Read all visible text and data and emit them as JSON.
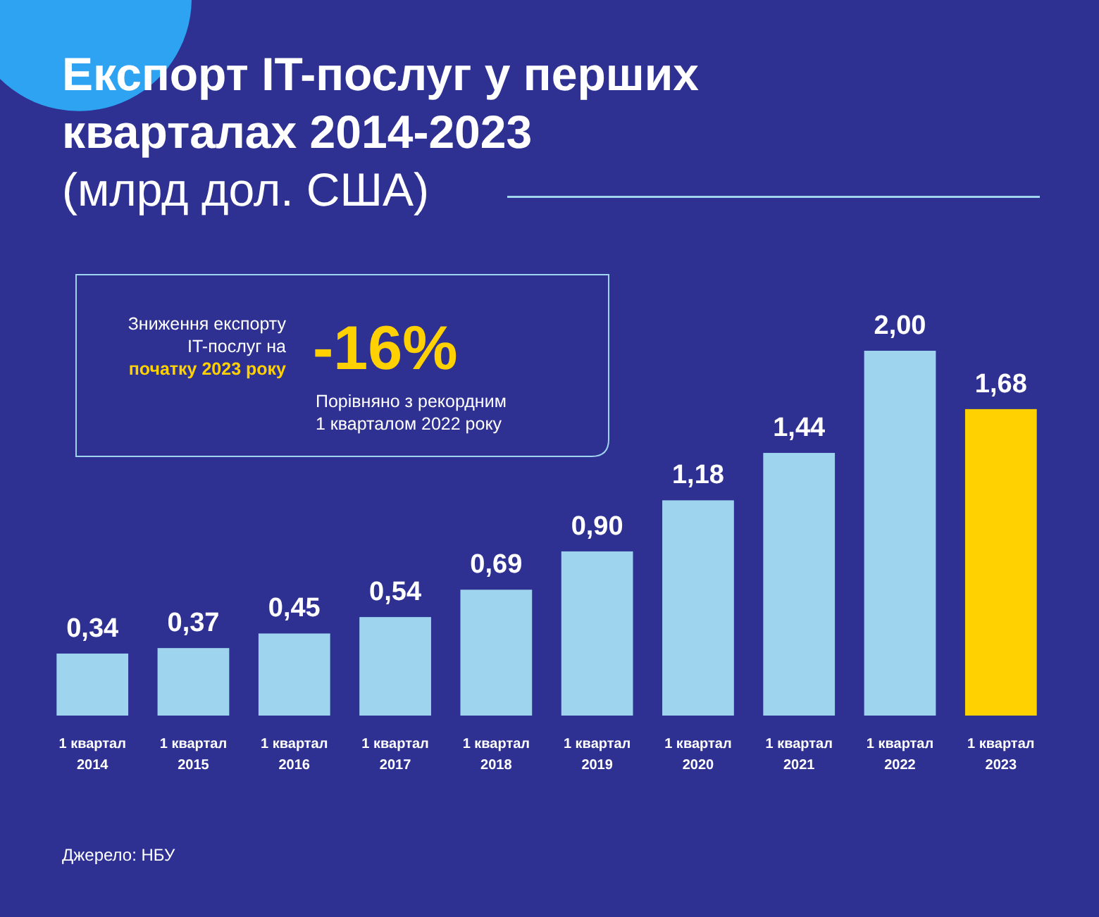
{
  "chart_data": {
    "type": "bar",
    "title": "Експорт IT-послуг у перших кварталах 2014-2023",
    "subtitle": "(млрд дол. США)",
    "categories": [
      "1 квартал 2014",
      "1 квартал 2015",
      "1 квартал 2016",
      "1 квартал 2017",
      "1 квартал 2018",
      "1 квартал 2019",
      "1 квартал 2020",
      "1 квартал 2021",
      "1 квартал 2022",
      "1 квартал 2023"
    ],
    "values": [
      0.34,
      0.37,
      0.45,
      0.54,
      0.69,
      0.9,
      1.18,
      1.44,
      2.0,
      1.68
    ],
    "value_labels": [
      "0,34",
      "0,37",
      "0,45",
      "0,54",
      "0,69",
      "0,90",
      "1,18",
      "1,44",
      "2,00",
      "1,68"
    ],
    "colors": [
      "#9fd4ef",
      "#9fd4ef",
      "#9fd4ef",
      "#9fd4ef",
      "#9fd4ef",
      "#9fd4ef",
      "#9fd4ef",
      "#9fd4ef",
      "#9fd4ef",
      "#ffd100"
    ],
    "annotations": [
      "Зниження експорту",
      "IT-послуг на",
      "початку 2023 року",
      "-16%",
      "Порівняно з рекордним",
      "1 кварталом 2022 року",
      "Джерело: НБУ"
    ]
  }
}
